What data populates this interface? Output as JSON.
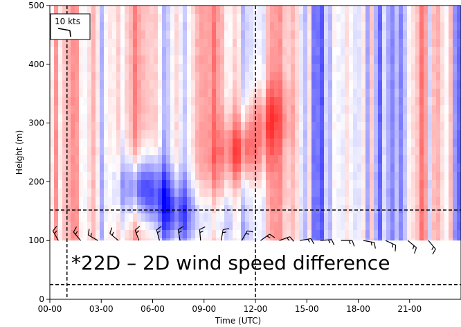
{
  "chart_data": {
    "type": "heatmap",
    "title": "",
    "xlabel": "Time (UTC)",
    "ylabel": "Height (m)",
    "xlim_hours": [
      0,
      24
    ],
    "ylim": [
      0,
      500
    ],
    "x_ticks": [
      {
        "hour": 0,
        "label": "00-00"
      },
      {
        "hour": 3,
        "label": "03-00"
      },
      {
        "hour": 6,
        "label": "06-00"
      },
      {
        "hour": 9,
        "label": "09-00"
      },
      {
        "hour": 12,
        "label": "12-00"
      },
      {
        "hour": 15,
        "label": "15-00"
      },
      {
        "hour": 18,
        "label": "18-00"
      },
      {
        "hour": 21,
        "label": "21-00"
      }
    ],
    "y_ticks": [
      0,
      100,
      200,
      300,
      400,
      500
    ],
    "heatmap": {
      "colormap": "bwr",
      "height_range": [
        100,
        500
      ],
      "colors": {
        "positive": "#ff0000",
        "negative": "#0000ff",
        "zero": "#ffffff"
      },
      "features": [
        {
          "type": "negative",
          "hour": 5.4,
          "height": 190,
          "strength": 0.75
        },
        {
          "type": "negative",
          "hour": 7.3,
          "height": 150,
          "strength": 0.5
        },
        {
          "type": "negative",
          "hour": 9.5,
          "height": 130,
          "strength": 0.35
        },
        {
          "type": "positive",
          "hour": 11.3,
          "height": 250,
          "strength": 0.55
        },
        {
          "type": "positive",
          "hour": 12.6,
          "height": 310,
          "strength": 0.35
        }
      ]
    },
    "reference_lines": {
      "vertical_hours": [
        1,
        12
      ],
      "horizontal_heights": [
        152,
        25
      ]
    },
    "wind_barbs": {
      "height": 100,
      "hours": [
        0.5,
        1.8,
        2.8,
        4.0,
        5.2,
        6.4,
        7.6,
        8.8,
        10.0,
        11.2,
        12.3,
        13.4,
        14.6,
        15.8,
        17.0,
        18.3,
        19.6,
        20.9,
        22.1
      ],
      "directions_deg": [
        330,
        320,
        300,
        310,
        340,
        345,
        350,
        355,
        10,
        30,
        55,
        70,
        80,
        85,
        90,
        100,
        115,
        130,
        140
      ]
    },
    "annotations": {
      "main": "*22D – 2D wind speed difference",
      "barb_reference": "10 kts"
    }
  }
}
